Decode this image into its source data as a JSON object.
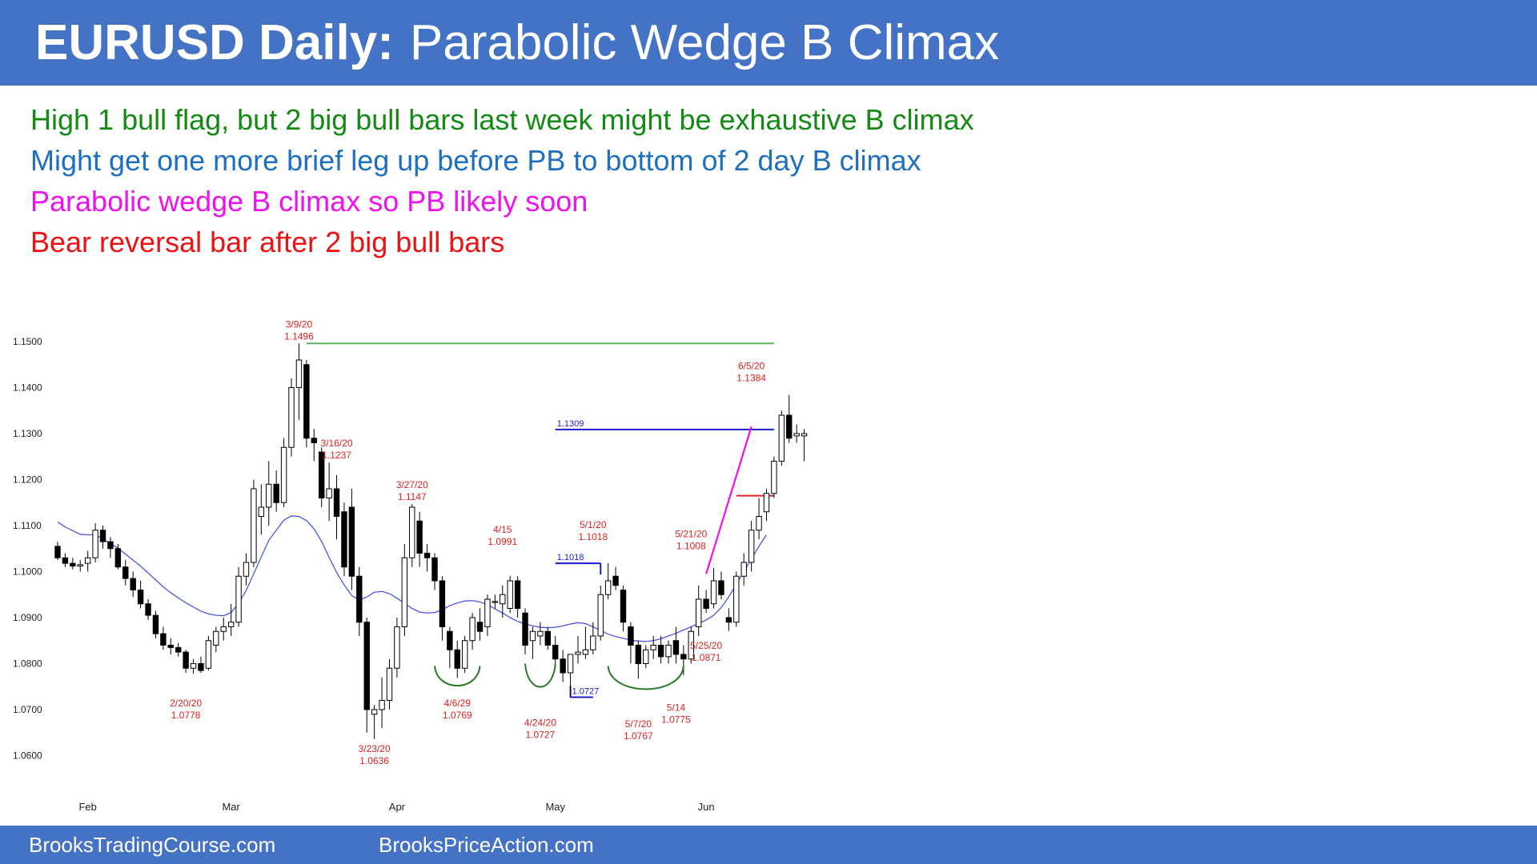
{
  "header": {
    "title_bold": "EURUSD Daily:",
    "title_rest": "Parabolic Wedge B Climax"
  },
  "notes": [
    {
      "text": "High 1 bull flag, but 2 big bull bars last week might be exhaustive B climax",
      "color": "#138a13"
    },
    {
      "text": "Might get one more brief leg up before PB to bottom of 2 day B climax",
      "color": "#1f6fbf"
    },
    {
      "text": "Parabolic wedge B climax so PB likely soon",
      "color": "#ee10ee"
    },
    {
      "text": "Bear reversal bar after 2 big bull bars",
      "color": "#ee1111"
    }
  ],
  "footer": {
    "left": "BrooksTradingCourse.com",
    "right": "BrooksPriceAction.com"
  },
  "colors": {
    "band": "#4472c4",
    "ma": "#4a55e6",
    "annotation": "#e02020",
    "level_blue": "#1a1ad6",
    "resistance": "#5cb85c",
    "wedge": "#ee10ee",
    "bottom_arc": "#2a7a2a"
  },
  "chart_data": {
    "type": "candlestick",
    "instrument": "EURUSD",
    "timeframe": "Daily",
    "ylim": [
      1.055,
      1.152
    ],
    "yticks": [
      "1.0600",
      "1.0700",
      "1.0800",
      "1.0900",
      "1.1000",
      "1.1100",
      "1.1200",
      "1.1300",
      "1.1400",
      "1.1500"
    ],
    "xticks": [
      {
        "label": "Feb",
        "bar": 4
      },
      {
        "label": "Mar",
        "bar": 23
      },
      {
        "label": "Apr",
        "bar": 45
      },
      {
        "label": "May",
        "bar": 66
      },
      {
        "label": "Jun",
        "bar": 86
      }
    ],
    "candles": [
      [
        1.1055,
        1.1065,
        1.1025,
        1.103
      ],
      [
        1.103,
        1.104,
        1.101,
        1.1018
      ],
      [
        1.1018,
        1.103,
        1.1005,
        1.1012
      ],
      [
        1.1012,
        1.1025,
        1.1,
        1.1015
      ],
      [
        1.1018,
        1.1045,
        1.1,
        1.103
      ],
      [
        1.103,
        1.1105,
        1.102,
        1.109
      ],
      [
        1.109,
        1.11,
        1.105,
        1.1065
      ],
      [
        1.1065,
        1.1075,
        1.103,
        1.105
      ],
      [
        1.105,
        1.106,
        1.1005,
        1.101
      ],
      [
        1.101,
        1.1025,
        1.097,
        1.0985
      ],
      [
        1.0985,
        1.1,
        1.0945,
        1.096
      ],
      [
        1.096,
        1.098,
        1.092,
        1.093
      ],
      [
        1.093,
        1.094,
        1.0895,
        1.0905
      ],
      [
        1.0905,
        1.0915,
        1.0855,
        1.0865
      ],
      [
        1.0865,
        1.088,
        1.083,
        1.084
      ],
      [
        1.084,
        1.0855,
        1.082,
        1.0835
      ],
      [
        1.0835,
        1.0845,
        1.0815,
        1.0825
      ],
      [
        1.0825,
        1.083,
        1.078,
        1.079
      ],
      [
        1.079,
        1.081,
        1.0778,
        1.08
      ],
      [
        1.08,
        1.0815,
        1.078,
        1.0785
      ],
      [
        1.079,
        1.086,
        1.0785,
        1.085
      ],
      [
        1.084,
        1.088,
        1.0825,
        1.087
      ],
      [
        1.087,
        1.09,
        1.085,
        1.088
      ],
      [
        1.088,
        1.093,
        1.086,
        1.089
      ],
      [
        1.089,
        1.101,
        1.088,
        1.099
      ],
      [
        1.099,
        1.104,
        1.097,
        1.102
      ],
      [
        1.102,
        1.12,
        1.101,
        1.118
      ],
      [
        1.112,
        1.119,
        1.108,
        1.114
      ],
      [
        1.114,
        1.124,
        1.11,
        1.119
      ],
      [
        1.119,
        1.122,
        1.113,
        1.115
      ],
      [
        1.115,
        1.129,
        1.114,
        1.127
      ],
      [
        1.127,
        1.142,
        1.125,
        1.14
      ],
      [
        1.14,
        1.1496,
        1.133,
        1.146
      ],
      [
        1.145,
        1.146,
        1.127,
        1.129
      ],
      [
        1.129,
        1.131,
        1.124,
        1.128
      ],
      [
        1.126,
        1.127,
        1.114,
        1.116
      ],
      [
        1.116,
        1.1237,
        1.111,
        1.118
      ],
      [
        1.118,
        1.121,
        1.107,
        1.112
      ],
      [
        1.113,
        1.115,
        1.099,
        1.101
      ],
      [
        1.114,
        1.118,
        1.096,
        1.099
      ],
      [
        1.099,
        1.101,
        1.086,
        1.089
      ],
      [
        1.089,
        1.09,
        1.065,
        1.07
      ],
      [
        1.069,
        1.071,
        1.0636,
        1.07
      ],
      [
        1.07,
        1.077,
        1.066,
        1.072
      ],
      [
        1.072,
        1.081,
        1.07,
        1.079
      ],
      [
        1.079,
        1.09,
        1.077,
        1.088
      ],
      [
        1.088,
        1.106,
        1.086,
        1.103
      ],
      [
        1.103,
        1.1147,
        1.101,
        1.114
      ],
      [
        1.111,
        1.113,
        1.101,
        1.104
      ],
      [
        1.104,
        1.106,
        1.1,
        1.103
      ],
      [
        1.103,
        1.104,
        1.096,
        1.098
      ],
      [
        1.098,
        1.099,
        1.085,
        1.088
      ],
      [
        1.087,
        1.088,
        1.079,
        1.083
      ],
      [
        1.083,
        1.085,
        1.0769,
        1.079
      ],
      [
        1.079,
        1.086,
        1.078,
        1.085
      ],
      [
        1.085,
        1.091,
        1.083,
        1.09
      ],
      [
        1.089,
        1.092,
        1.085,
        1.087
      ],
      [
        1.088,
        1.095,
        1.086,
        1.094
      ],
      [
        1.0935,
        1.095,
        1.092,
        1.0935
      ],
      [
        1.093,
        1.097,
        1.09,
        1.095
      ],
      [
        1.092,
        1.0991,
        1.091,
        1.098
      ],
      [
        1.098,
        1.099,
        1.09,
        1.092
      ],
      [
        1.091,
        1.092,
        1.082,
        1.084
      ],
      [
        1.085,
        1.088,
        1.081,
        1.087
      ],
      [
        1.086,
        1.089,
        1.084,
        1.087
      ],
      [
        1.087,
        1.088,
        1.083,
        1.084
      ],
      [
        1.084,
        1.086,
        1.079,
        1.081
      ],
      [
        1.081,
        1.083,
        1.076,
        1.078
      ],
      [
        1.078,
        1.082,
        1.0727,
        1.082
      ],
      [
        1.082,
        1.086,
        1.08,
        1.0825
      ],
      [
        1.082,
        1.088,
        1.081,
        1.083
      ],
      [
        1.083,
        1.089,
        1.082,
        1.086
      ],
      [
        1.086,
        1.097,
        1.085,
        1.095
      ],
      [
        1.095,
        1.1018,
        1.094,
        1.098
      ],
      [
        1.099,
        1.101,
        1.096,
        1.097
      ],
      [
        1.096,
        1.097,
        1.087,
        1.089
      ],
      [
        1.088,
        1.089,
        1.08,
        1.084
      ],
      [
        1.084,
        1.085,
        1.0767,
        1.08
      ],
      [
        1.08,
        1.084,
        1.079,
        1.083
      ],
      [
        1.083,
        1.086,
        1.081,
        1.084
      ],
      [
        1.084,
        1.086,
        1.08,
        1.0815
      ],
      [
        1.0815,
        1.085,
        1.08,
        1.084
      ],
      [
        1.085,
        1.088,
        1.08,
        1.082
      ],
      [
        1.082,
        1.084,
        1.0775,
        1.081
      ],
      [
        1.081,
        1.088,
        1.08,
        1.087
      ],
      [
        1.088,
        1.097,
        1.086,
        1.094
      ],
      [
        1.094,
        1.096,
        1.091,
        1.092
      ],
      [
        1.093,
        1.1008,
        1.092,
        1.098
      ],
      [
        1.098,
        1.1,
        1.094,
        1.095
      ],
      [
        1.09,
        1.092,
        1.0871,
        1.089
      ],
      [
        1.089,
        1.1,
        1.088,
        1.099
      ],
      [
        1.099,
        1.104,
        1.097,
        1.102
      ],
      [
        1.102,
        1.111,
        1.1,
        1.109
      ],
      [
        1.109,
        1.116,
        1.107,
        1.112
      ],
      [
        1.113,
        1.118,
        1.111,
        1.117
      ],
      [
        1.117,
        1.125,
        1.116,
        1.124
      ],
      [
        1.124,
        1.135,
        1.123,
        1.134
      ],
      [
        1.134,
        1.1384,
        1.128,
        1.129
      ],
      [
        1.1295,
        1.132,
        1.128,
        1.13
      ],
      [
        1.1295,
        1.131,
        1.124,
        1.13
      ]
    ],
    "moving_average": [
      1.1108,
      1.1097,
      1.1089,
      1.1081,
      1.108,
      1.108,
      1.1071,
      1.1061,
      1.1051,
      1.1038,
      1.1025,
      1.1012,
      1.0997,
      1.0982,
      1.0967,
      1.0954,
      1.0943,
      1.0932,
      1.0923,
      1.0914,
      1.0908,
      1.0905,
      1.0904,
      1.0911,
      1.0931,
      1.0959,
      1.0995,
      1.1032,
      1.1068,
      1.109,
      1.1112,
      1.1121,
      1.112,
      1.1111,
      1.1093,
      1.1066,
      1.1031,
      1.0998,
      1.0971,
      1.0948,
      1.0938,
      1.0945,
      1.0955,
      1.0957,
      1.0952,
      1.0942,
      1.0931,
      1.092,
      1.0912,
      1.091,
      1.0911,
      1.0917,
      1.0926,
      1.0932,
      1.0936,
      1.0937,
      1.0934,
      1.0928,
      1.0919,
      1.091,
      1.09,
      1.0892,
      1.0886,
      1.0882,
      1.0879,
      1.0878,
      1.0879,
      1.0882,
      1.0886,
      1.0889,
      1.0887,
      1.088,
      1.0872,
      1.0864,
      1.0859,
      1.0855,
      1.0851,
      1.0849,
      1.0848,
      1.085,
      1.0854,
      1.086,
      1.0866,
      1.0873,
      1.088,
      1.0887,
      1.0895,
      1.0905,
      1.0922,
      1.0945,
      1.0972,
      1.1,
      1.1028,
      1.1055,
      1.108
    ],
    "levels": [
      {
        "label": "",
        "value": 1.1496,
        "from": 33,
        "to": 95,
        "color": "#5cb85c"
      },
      {
        "label": "1.1309",
        "value": 1.1309,
        "from": 66,
        "to": 95,
        "color": "#1a1ad6"
      },
      {
        "label": "1.1018",
        "value": 1.1018,
        "from": 66,
        "to": 72,
        "color": "#1a1ad6"
      },
      {
        "label": "1.0727",
        "value": 1.0727,
        "from": 68,
        "to": 71,
        "color": "#1a1ad6"
      },
      {
        "label": "",
        "value": 1.1165,
        "from": 90,
        "to": 95,
        "color": "#e02020"
      }
    ],
    "annotations": [
      {
        "lines": [
          "3/9/20",
          "1.1496"
        ],
        "bar": 32,
        "price": 1.1496,
        "pos": "above"
      },
      {
        "lines": [
          "3/16/20",
          "1.1237"
        ],
        "bar": 37,
        "price": 1.1237,
        "pos": "above"
      },
      {
        "lines": [
          "3/27/20",
          "1.1147"
        ],
        "bar": 47,
        "price": 1.1147,
        "pos": "above"
      },
      {
        "lines": [
          "4/15",
          "1.0991"
        ],
        "bar": 59,
        "price": 1.105,
        "pos": "above"
      },
      {
        "lines": [
          "5/1/20",
          "1.1018"
        ],
        "bar": 71,
        "price": 1.106,
        "pos": "above"
      },
      {
        "lines": [
          "5/21/20",
          "1.1008"
        ],
        "bar": 84,
        "price": 1.104,
        "pos": "above"
      },
      {
        "lines": [
          "6/5/20",
          "1.1384"
        ],
        "bar": 92,
        "price": 1.1405,
        "pos": "above"
      },
      {
        "lines": [
          "2/20/20",
          "1.0778"
        ],
        "bar": 17,
        "price": 1.0735,
        "pos": "below"
      },
      {
        "lines": [
          "3/23/20",
          "1.0636"
        ],
        "bar": 42,
        "price": 1.0636,
        "pos": "below"
      },
      {
        "lines": [
          "4/6/29",
          "1.0769"
        ],
        "bar": 53,
        "price": 1.0735,
        "pos": "below"
      },
      {
        "lines": [
          "4/24/20",
          "1.0727"
        ],
        "bar": 64,
        "price": 1.0692,
        "pos": "below"
      },
      {
        "lines": [
          "5/7/20",
          "1.0767"
        ],
        "bar": 77,
        "price": 1.069,
        "pos": "below"
      },
      {
        "lines": [
          "5/14",
          "1.0775"
        ],
        "bar": 82,
        "price": 1.0725,
        "pos": "below"
      },
      {
        "lines": [
          "5/25/20",
          "1.0871"
        ],
        "bar": 86,
        "price": 1.086,
        "pos": "below"
      }
    ],
    "wedge_line": {
      "from": [
        86,
        1.0995
      ],
      "to": [
        92,
        1.1315
      ],
      "color": "#ee10ee"
    },
    "bottom_arcs": [
      {
        "from": 50,
        "to": 56,
        "top": 1.0795,
        "bottom": 1.0748
      },
      {
        "from": 62,
        "to": 66,
        "top": 1.08,
        "bottom": 1.0743
      },
      {
        "from": 73,
        "to": 83,
        "top": 1.0795,
        "bottom": 1.0738
      }
    ]
  }
}
